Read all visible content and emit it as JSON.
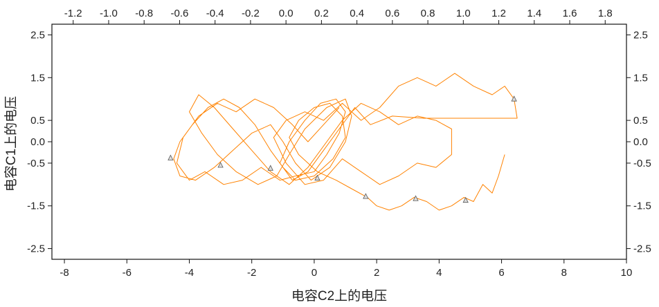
{
  "chart_data": {
    "type": "line",
    "xlabel": "电容C2上的电压",
    "ylabel": "电容C1上的电压",
    "xlim": [
      -8.4,
      10
    ],
    "ylim": [
      -2.75,
      2.75
    ],
    "x_ticks": [
      -8,
      -6,
      -4,
      -2,
      0,
      2,
      4,
      6,
      8,
      10
    ],
    "x_tick_labels": [
      "-8",
      "-6",
      "-4",
      "-2",
      "0",
      "2",
      "4",
      "6",
      "8",
      "10"
    ],
    "y_ticks": [
      -2.5,
      -1.5,
      -0.5,
      0.0,
      0.5,
      1.5,
      2.5
    ],
    "y_tick_labels": [
      "-2.5",
      "-1.5",
      "-0.5",
      "0.0",
      "0.5",
      "1.5",
      "2.5"
    ],
    "top_ticks": [
      -1.2,
      -1.0,
      -0.8,
      -0.6,
      -0.4,
      -0.2,
      0.0,
      0.2,
      0.4,
      0.6,
      0.8,
      1.0,
      1.2,
      1.4,
      1.6,
      1.8
    ],
    "top_tick_labels": [
      "-1.2",
      "-1.0",
      "-0.8",
      "-0.6",
      "-0.4",
      "-0.2",
      "0.0",
      "0.2",
      "0.4",
      "0.6",
      "0.8",
      "1.0",
      "1.2",
      "1.4",
      "1.6",
      "1.8"
    ],
    "right_ticks": [
      -2.5,
      -1.5,
      -0.5,
      0.0,
      0.5,
      1.5,
      2.5
    ],
    "right_tick_labels": [
      "-2.5",
      "-1.5",
      "-0.5",
      "0.0",
      "0.5",
      "1.5",
      "2.5"
    ],
    "grid": false,
    "series": [
      {
        "color": "#ff8200",
        "points": [
          [
            6.1,
            -0.3
          ],
          [
            5.9,
            -0.8
          ],
          [
            5.7,
            -1.2
          ],
          [
            5.4,
            -1.0
          ],
          [
            5.1,
            -1.4
          ],
          [
            4.8,
            -1.3
          ],
          [
            4.4,
            -1.5
          ],
          [
            4.0,
            -1.6
          ],
          [
            3.6,
            -1.4
          ],
          [
            3.2,
            -1.3
          ],
          [
            2.8,
            -1.5
          ],
          [
            2.4,
            -1.6
          ],
          [
            2.0,
            -1.5
          ],
          [
            1.7,
            -1.3
          ],
          [
            1.2,
            -1.1
          ],
          [
            0.7,
            -0.9
          ],
          [
            0.1,
            -0.7
          ],
          [
            -0.5,
            -0.3
          ],
          [
            -0.8,
            0.1
          ],
          [
            -0.5,
            0.5
          ],
          [
            0.0,
            0.8
          ],
          [
            0.5,
            0.9
          ],
          [
            0.9,
            0.6
          ],
          [
            1.0,
            0.1
          ],
          [
            0.6,
            -0.4
          ],
          [
            0.0,
            -0.8
          ],
          [
            -0.6,
            -0.9
          ],
          [
            -1.0,
            -0.6
          ],
          [
            -1.4,
            -0.2
          ],
          [
            -1.9,
            0.4
          ],
          [
            -2.4,
            0.8
          ],
          [
            -2.9,
            1.0
          ],
          [
            -3.4,
            0.8
          ],
          [
            -3.9,
            0.4
          ],
          [
            -4.3,
            0.0
          ],
          [
            -4.5,
            -0.4
          ],
          [
            -4.3,
            -0.8
          ],
          [
            -3.8,
            -0.9
          ],
          [
            -3.2,
            -0.6
          ],
          [
            -2.6,
            -0.2
          ],
          [
            -2.0,
            0.2
          ],
          [
            -1.4,
            0.4
          ],
          [
            -1.0,
            0.0
          ],
          [
            -0.6,
            -0.5
          ],
          [
            -0.1,
            -0.9
          ],
          [
            0.5,
            -0.6
          ],
          [
            1.0,
            0.0
          ],
          [
            1.2,
            0.6
          ],
          [
            1.0,
            1.0
          ],
          [
            0.4,
            0.8
          ],
          [
            -0.3,
            0.3
          ],
          [
            -0.8,
            -0.3
          ],
          [
            -1.2,
            -0.8
          ],
          [
            -1.8,
            -1.0
          ],
          [
            -2.5,
            -0.7
          ],
          [
            -3.1,
            -0.3
          ],
          [
            -3.6,
            0.2
          ],
          [
            -4.0,
            0.7
          ],
          [
            -3.7,
            1.1
          ],
          [
            -3.2,
            0.8
          ],
          [
            -2.6,
            0.3
          ],
          [
            -2.0,
            -0.2
          ],
          [
            -1.4,
            -0.7
          ],
          [
            -0.8,
            -1.0
          ],
          [
            -0.2,
            -0.6
          ],
          [
            0.4,
            0.0
          ],
          [
            0.9,
            0.5
          ],
          [
            1.5,
            0.9
          ],
          [
            2.1,
            0.7
          ],
          [
            2.7,
            0.4
          ],
          [
            3.3,
            0.6
          ],
          [
            3.9,
            0.5
          ],
          [
            4.4,
            0.3
          ],
          [
            4.4,
            -0.3
          ],
          [
            3.9,
            -0.6
          ],
          [
            3.3,
            -0.5
          ],
          [
            2.7,
            -0.8
          ],
          [
            2.1,
            -1.0
          ],
          [
            1.5,
            -0.7
          ],
          [
            0.9,
            -0.4
          ],
          [
            0.3,
            -0.9
          ],
          [
            -0.3,
            -1.0
          ],
          [
            -0.9,
            -0.5
          ],
          [
            -1.3,
            0.1
          ],
          [
            -0.9,
            0.5
          ],
          [
            -0.3,
            0.7
          ],
          [
            0.3,
            0.5
          ],
          [
            0.9,
            0.9
          ],
          [
            1.5,
            0.5
          ],
          [
            2.1,
            0.8
          ],
          [
            2.7,
            1.3
          ],
          [
            3.3,
            1.5
          ],
          [
            3.9,
            1.3
          ],
          [
            4.5,
            1.6
          ],
          [
            5.1,
            1.3
          ],
          [
            5.7,
            1.1
          ],
          [
            6.1,
            1.3
          ],
          [
            6.4,
            1.0
          ],
          [
            6.5,
            0.55
          ],
          [
            5.5,
            0.55
          ],
          [
            4.5,
            0.55
          ],
          [
            3.5,
            0.55
          ],
          [
            2.5,
            0.6
          ],
          [
            1.8,
            0.4
          ],
          [
            1.3,
            0.8
          ],
          [
            0.8,
            0.3
          ],
          [
            0.3,
            -0.2
          ],
          [
            -0.2,
            -0.7
          ],
          [
            -0.7,
            -0.9
          ],
          [
            -1.1,
            -0.5
          ],
          [
            -0.8,
            0.0
          ],
          [
            -0.3,
            0.5
          ],
          [
            0.2,
            0.9
          ],
          [
            0.7,
            1.0
          ],
          [
            1.0,
            0.7
          ],
          [
            0.8,
            0.2
          ],
          [
            0.4,
            -0.3
          ],
          [
            0.0,
            -0.7
          ],
          [
            -0.6,
            -0.8
          ],
          [
            -1.1,
            -0.9
          ],
          [
            -1.7,
            -0.6
          ],
          [
            -2.3,
            -0.9
          ],
          [
            -2.9,
            -1.0
          ],
          [
            -3.5,
            -0.7
          ],
          [
            -4.0,
            -0.9
          ],
          [
            -4.4,
            -0.5
          ],
          [
            -4.2,
            0.1
          ],
          [
            -3.7,
            0.6
          ],
          [
            -3.1,
            0.9
          ],
          [
            -2.5,
            0.7
          ],
          [
            -1.9,
            1.0
          ],
          [
            -1.3,
            0.8
          ],
          [
            -0.7,
            0.4
          ],
          [
            -0.2,
            0.0
          ],
          [
            0.3,
            0.4
          ],
          [
            0.8,
            0.8
          ]
        ]
      }
    ],
    "markers": [
      [
        -4.6,
        -0.38
      ],
      [
        -3.0,
        -0.55
      ],
      [
        -1.4,
        -0.62
      ],
      [
        0.1,
        -0.85
      ],
      [
        1.65,
        -1.28
      ],
      [
        3.25,
        -1.33
      ],
      [
        4.85,
        -1.37
      ],
      [
        6.4,
        1.0
      ]
    ],
    "marker_shape": "triangle"
  }
}
